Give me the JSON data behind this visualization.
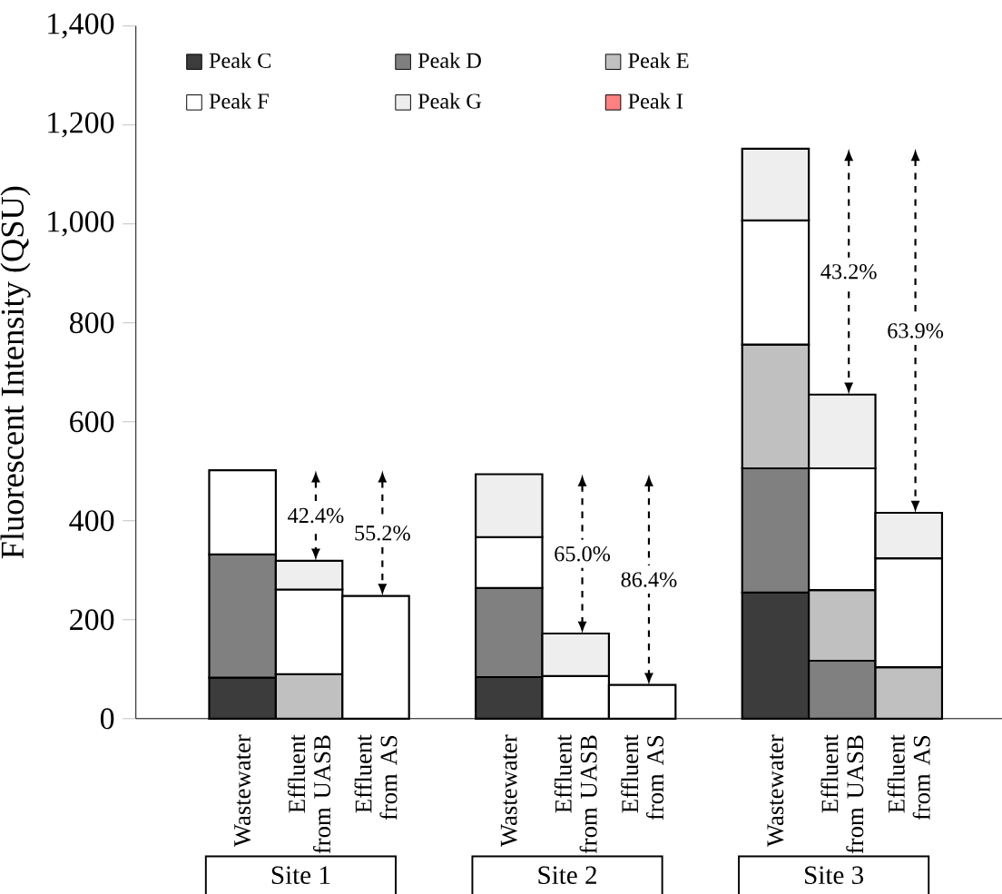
{
  "chart_data": {
    "type": "bar",
    "stacked": true,
    "ylabel": "Fluorescent Intensity (QSU)",
    "categories": [
      "Wastewater",
      "Effluent from UASB",
      "Effluent from AS",
      null,
      "Wastewater",
      "Effluent from UASB",
      "Effluent from AS",
      null,
      "Wastewater",
      "Effluent from UASB",
      "Effluent from AS"
    ],
    "series": [
      {
        "name": "Peak C",
        "color": "#3c3c3c",
        "values": [
          83,
          null,
          null,
          null,
          84,
          null,
          null,
          null,
          255,
          null,
          null
        ]
      },
      {
        "name": "Peak D",
        "color": "#808080",
        "values": [
          249,
          null,
          null,
          null,
          180,
          null,
          null,
          null,
          251,
          117,
          null
        ]
      },
      {
        "name": "Peak E",
        "color": "#c0c0c0",
        "values": [
          null,
          90,
          null,
          null,
          null,
          null,
          null,
          null,
          250,
          143,
          104
        ]
      },
      {
        "name": "Peak F",
        "color": "#ffffff",
        "values": [
          170,
          171,
          248,
          null,
          103,
          86,
          68,
          null,
          251,
          246,
          220
        ]
      },
      {
        "name": "Peak G",
        "color": "#eeeeee",
        "values": [
          null,
          58,
          null,
          null,
          127,
          86,
          null,
          null,
          145,
          149,
          92
        ]
      },
      {
        "name": "Peak I",
        "color": "#ff8080",
        "values": [
          null,
          null,
          null,
          null,
          null,
          null,
          null,
          null,
          null,
          null,
          null
        ]
      }
    ],
    "ylim": [
      0,
      1400
    ],
    "yticks": [
      0,
      200,
      400,
      600,
      800,
      {
        "value": 1000,
        "label": "1,000"
      },
      {
        "value": 1200,
        "label": "1,200"
      },
      {
        "value": 1400,
        "label": "1,400"
      }
    ],
    "legend": "top left",
    "annotations": [
      "Site 1",
      "Site 2",
      "Site 3",
      "42.4%",
      "55.2%",
      "65.0%",
      "86.4%",
      "43.2%",
      "63.9%"
    ]
  }
}
